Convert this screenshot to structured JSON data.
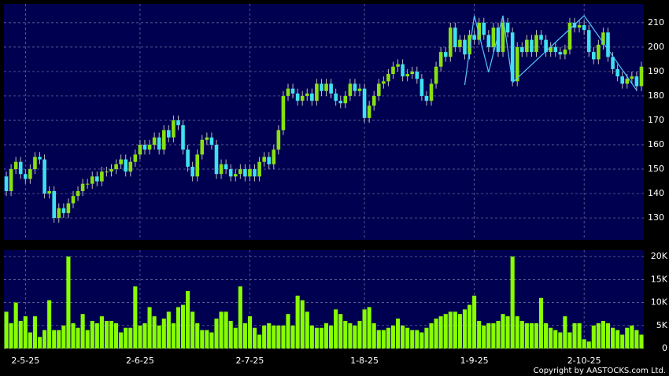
{
  "chart_data": {
    "type": "candlestick",
    "xlim": [
      -0.5,
      133.5
    ],
    "xticks": [
      {
        "value": 4,
        "label": "2-5-25"
      },
      {
        "value": 28,
        "label": "2-6-25"
      },
      {
        "value": 51,
        "label": "2-7-25"
      },
      {
        "value": 75,
        "label": "1-8-25"
      },
      {
        "value": 98,
        "label": "1-9-25"
      },
      {
        "value": 121,
        "label": "2-10-25"
      }
    ],
    "ylim": [
      121,
      217.7
    ],
    "yticks": [
      130,
      140,
      150,
      160,
      170,
      180,
      190,
      200,
      210
    ],
    "up_color": "#88e010",
    "down_color": "#40e0f0",
    "grid": true,
    "series": [
      {
        "open": [
          147,
          141,
          150,
          153,
          148,
          146,
          150,
          155,
          154,
          140,
          141,
          130,
          134,
          132,
          136,
          139,
          141,
          144,
          144,
          147,
          145,
          149,
          149,
          150,
          152,
          154,
          149,
          153,
          156,
          160,
          158,
          160,
          163,
          158,
          166,
          163,
          170,
          168,
          158,
          151,
          147,
          156,
          162,
          163,
          160,
          148,
          152,
          150,
          147,
          148,
          150,
          147,
          150,
          147,
          153,
          155,
          152,
          158,
          166,
          180,
          183,
          181,
          178,
          180,
          181,
          178,
          185,
          182,
          185,
          181,
          178,
          177,
          180,
          185,
          182,
          183,
          171,
          176,
          180,
          185,
          186,
          189,
          192,
          193,
          188,
          189,
          190,
          187,
          180,
          178,
          185,
          192,
          198,
          196,
          208,
          200,
          203,
          197,
          205,
          203,
          210,
          205,
          200,
          208,
          198,
          210,
          206,
          186,
          200,
          198,
          203,
          198,
          205,
          203,
          198,
          200,
          198,
          197,
          199,
          210,
          208,
          209,
          207,
          198,
          195,
          201,
          206,
          196,
          191,
          188,
          185,
          187,
          188,
          184
        ],
        "high": [
          149,
          152,
          155,
          155,
          150,
          152,
          157,
          157,
          156,
          143,
          143,
          136,
          136,
          138,
          141,
          143,
          146,
          146,
          149,
          149,
          151,
          151,
          152,
          154,
          156,
          156,
          155,
          158,
          162,
          162,
          162,
          165,
          165,
          168,
          168,
          172,
          172,
          170,
          160,
          153,
          158,
          164,
          165,
          165,
          162,
          154,
          154,
          152,
          150,
          152,
          152,
          152,
          152,
          155,
          157,
          157,
          160,
          168,
          182,
          185,
          185,
          183,
          182,
          183,
          183,
          187,
          187,
          187,
          187,
          183,
          180,
          182,
          187,
          187,
          185,
          185,
          178,
          182,
          187,
          188,
          191,
          194,
          195,
          195,
          191,
          192,
          192,
          189,
          182,
          187,
          194,
          200,
          200,
          210,
          210,
          205,
          205,
          207,
          207,
          212,
          212,
          207,
          210,
          210,
          212,
          212,
          208,
          202,
          202,
          205,
          205,
          207,
          207,
          205,
          202,
          202,
          200,
          201,
          212,
          212,
          211,
          211,
          209,
          200,
          203,
          208,
          208,
          198,
          193,
          190,
          189,
          190,
          190,
          194
        ],
        "low": [
          139,
          139,
          148,
          146,
          144,
          144,
          148,
          152,
          138,
          138,
          128,
          128,
          130,
          130,
          134,
          137,
          139,
          142,
          142,
          143,
          143,
          147,
          147,
          148,
          150,
          147,
          147,
          151,
          154,
          156,
          156,
          158,
          156,
          156,
          161,
          161,
          166,
          156,
          149,
          145,
          145,
          154,
          160,
          158,
          146,
          146,
          148,
          145,
          145,
          146,
          145,
          145,
          145,
          145,
          151,
          150,
          150,
          156,
          164,
          178,
          179,
          176,
          176,
          178,
          176,
          176,
          180,
          180,
          179,
          176,
          175,
          175,
          178,
          180,
          180,
          169,
          169,
          174,
          178,
          183,
          184,
          187,
          190,
          186,
          186,
          187,
          185,
          178,
          176,
          176,
          183,
          190,
          194,
          194,
          198,
          198,
          195,
          195,
          201,
          201,
          203,
          198,
          198,
          196,
          196,
          204,
          184,
          184,
          196,
          196,
          196,
          196,
          201,
          196,
          196,
          196,
          195,
          195,
          197,
          206,
          206,
          205,
          196,
          193,
          193,
          199,
          194,
          189,
          186,
          183,
          183,
          185,
          182,
          182
        ],
        "close": [
          141,
          150,
          153,
          148,
          146,
          150,
          155,
          154,
          140,
          141,
          130,
          134,
          132,
          136,
          139,
          141,
          144,
          144,
          147,
          145,
          149,
          149,
          150,
          152,
          154,
          149,
          153,
          156,
          160,
          158,
          160,
          163,
          158,
          166,
          163,
          170,
          168,
          158,
          151,
          147,
          156,
          162,
          163,
          160,
          148,
          152,
          150,
          147,
          148,
          150,
          147,
          150,
          147,
          153,
          155,
          152,
          158,
          166,
          180,
          183,
          181,
          178,
          180,
          181,
          178,
          185,
          182,
          185,
          181,
          178,
          177,
          180,
          185,
          182,
          183,
          171,
          176,
          180,
          185,
          186,
          189,
          192,
          193,
          188,
          189,
          190,
          187,
          180,
          178,
          185,
          192,
          198,
          196,
          208,
          200,
          203,
          197,
          205,
          203,
          210,
          205,
          200,
          208,
          198,
          210,
          206,
          186,
          200,
          198,
          203,
          198,
          205,
          203,
          198,
          200,
          198,
          197,
          199,
          210,
          208,
          209,
          207,
          198,
          195,
          201,
          206,
          196,
          191,
          188,
          185,
          187,
          188,
          184,
          192
        ]
      }
    ],
    "overlay": {
      "color": "#50c8ff",
      "x": [
        96,
        98,
        101,
        104,
        106,
        121,
        128,
        132
      ],
      "values": [
        184.5,
        212.9,
        189.7,
        212.9,
        185.5,
        212.9,
        193.5,
        182.3
      ]
    },
    "volume": {
      "color": "#88ff00",
      "ylim": [
        0,
        21400
      ],
      "yticks": [
        0,
        {
          "value": 5000,
          "label": "5K"
        },
        {
          "value": 10000,
          "label": "10K"
        },
        {
          "value": 15000,
          "label": "15K"
        },
        {
          "value": 20000,
          "label": "20K"
        }
      ],
      "values": [
        8000,
        5500,
        10000,
        6000,
        7000,
        3500,
        7000,
        2500,
        4000,
        10500,
        4000,
        4000,
        5000,
        20000,
        5500,
        4500,
        7500,
        4000,
        6000,
        5500,
        7000,
        6000,
        6000,
        5500,
        3500,
        4500,
        4500,
        13500,
        5000,
        5500,
        9000,
        7000,
        5000,
        6500,
        8000,
        5500,
        9000,
        9500,
        12500,
        8000,
        5500,
        4000,
        4000,
        3500,
        6500,
        8000,
        8000,
        6000,
        4500,
        13500,
        5500,
        7000,
        4500,
        3000,
        5000,
        5500,
        5000,
        5000,
        5000,
        7500,
        5000,
        11500,
        10500,
        8000,
        5000,
        4500,
        4500,
        5500,
        5000,
        8500,
        7500,
        6000,
        5500,
        5000,
        6000,
        8500,
        9000,
        5500,
        4000,
        4000,
        4500,
        5000,
        6500,
        5000,
        4500,
        4000,
        4000,
        3500,
        4500,
        5500,
        6500,
        7000,
        7500,
        8000,
        8000,
        7500,
        8500,
        9500,
        11500,
        6000,
        5000,
        5500,
        5500,
        6000,
        7500,
        7000,
        20000,
        7000,
        6000,
        5500,
        5500,
        5500,
        11000,
        5500,
        4500,
        4000,
        3500,
        7000,
        3500,
        5500,
        5500,
        2000,
        1500,
        5000,
        5500,
        6000,
        5500,
        4500,
        4000,
        3000,
        4500,
        5000,
        4000,
        3000
      ]
    },
    "copyright": "Copyright by AASTOCKS.com Ltd."
  }
}
